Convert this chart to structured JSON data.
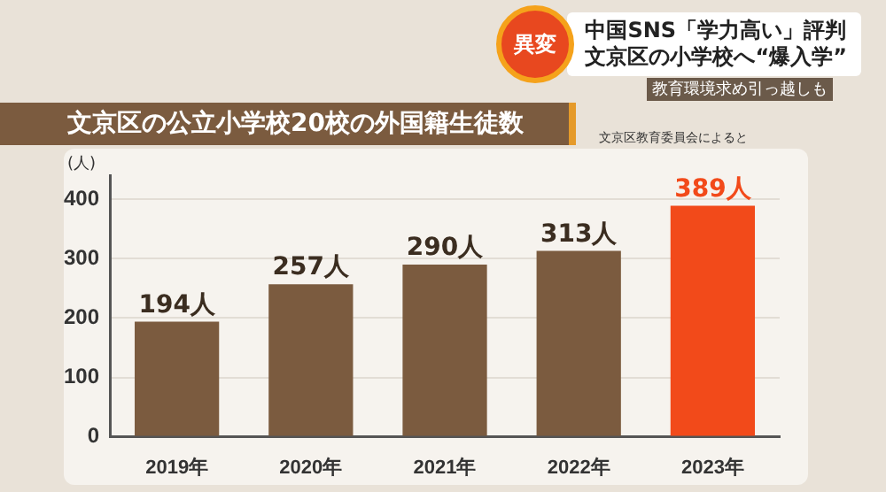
{
  "chart_data": {
    "type": "bar",
    "title": "文京区の公立小学校20校の外国籍生徒数",
    "subtitle": "文京区教育委員会によると",
    "ylabel": "(人)",
    "annotations": [
      "異変",
      "中国SNS「学力高い」評判",
      "文京区の小学校へ“爆入学”",
      "教育環境求め引っ越しも"
    ],
    "categories": [
      "2019年",
      "2020年",
      "2021年",
      "2022年",
      "2023年"
    ],
    "values": [
      194,
      257,
      290,
      313,
      389
    ],
    "colors": [
      "#7b5b3f",
      "#7b5b3f",
      "#7b5b3f",
      "#7b5b3f",
      "#f24a1a"
    ],
    "value_labels": [
      "194人",
      "257人",
      "290人",
      "313人",
      "389人"
    ],
    "ylim": [
      0,
      440
    ],
    "yticks": [
      0,
      100,
      200,
      300,
      400
    ],
    "grid": "y"
  }
}
